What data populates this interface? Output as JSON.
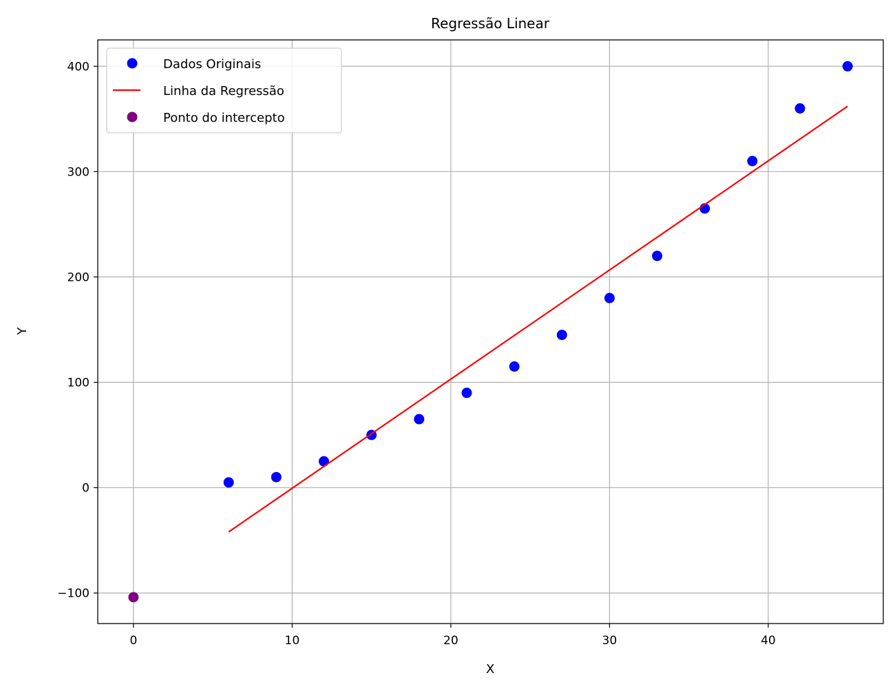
{
  "chart_data": {
    "type": "scatter",
    "title": "Regressão Linear",
    "xlabel": "X",
    "ylabel": "Y",
    "xlim": [
      -2.25,
      47.25
    ],
    "ylim": [
      -129,
      425
    ],
    "xticks": [
      0,
      10,
      20,
      30,
      40
    ],
    "yticks": [
      -100,
      0,
      100,
      200,
      300,
      400
    ],
    "xtick_labels": [
      "0",
      "10",
      "20",
      "30",
      "40"
    ],
    "ytick_labels": [
      "−100",
      "0",
      "100",
      "200",
      "300",
      "400"
    ],
    "grid": true,
    "legend_position": "top-left",
    "series": [
      {
        "name": "Dados Originais",
        "kind": "scatter",
        "color": "#0000ff",
        "x": [
          6,
          9,
          12,
          15,
          18,
          21,
          24,
          27,
          30,
          33,
          36,
          39,
          42,
          45
        ],
        "y": [
          5,
          10,
          25,
          50,
          65,
          90,
          115,
          145,
          180,
          220,
          265,
          310,
          360,
          400
        ]
      },
      {
        "name": "Linha da Regressão",
        "kind": "line",
        "color": "#ff0000",
        "x": [
          6,
          45
        ],
        "y": [
          -42,
          362
        ]
      },
      {
        "name": "Ponto do intercepto",
        "kind": "scatter",
        "color": "#800080",
        "x": [
          0
        ],
        "y": [
          -104
        ]
      }
    ]
  }
}
